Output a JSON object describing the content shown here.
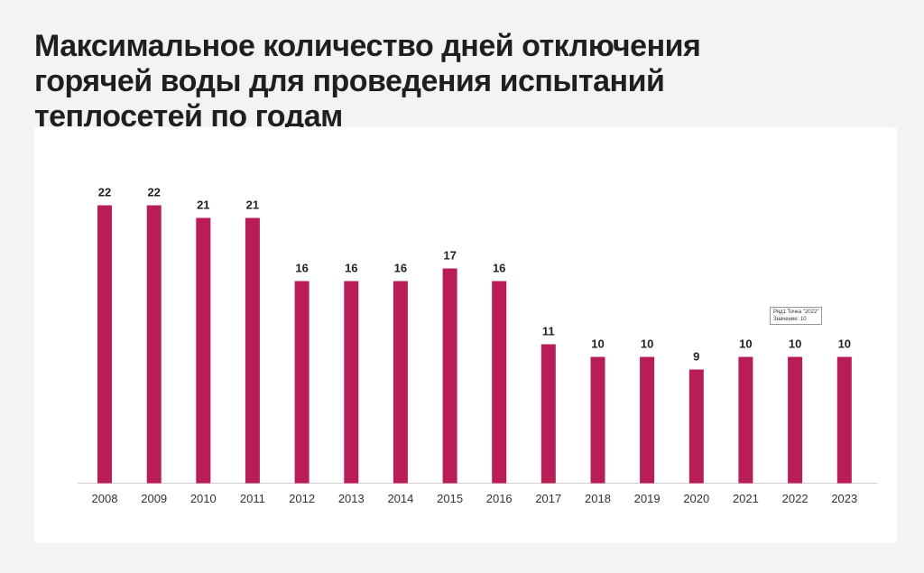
{
  "page": {
    "title_lines": [
      "Максимальное количество дней отключения",
      "горячей воды для проведения испытаний",
      "теплосетей по годам"
    ]
  },
  "chart_data": {
    "type": "bar",
    "categories": [
      "2008",
      "2009",
      "2010",
      "2011",
      "2012",
      "2013",
      "2014",
      "2015",
      "2016",
      "2017",
      "2018",
      "2019",
      "2020",
      "2021",
      "2022",
      "2023"
    ],
    "values": [
      22,
      22,
      21,
      21,
      16,
      16,
      16,
      17,
      16,
      11,
      10,
      10,
      9,
      10,
      10,
      10
    ],
    "title": "Максимальное количество дней отключения горячей воды для проведения испытаний теплосетей по годам",
    "xlabel": "",
    "ylabel": "",
    "ylim": [
      0,
      25
    ],
    "grid": false,
    "legend": "none",
    "bar_color": "#b81d57",
    "axis_color": "#cfcfcf",
    "data_labels": true
  },
  "tooltip": {
    "line1": "Ряд1 Точка \"2022\"",
    "line2": "Значение: 10"
  }
}
